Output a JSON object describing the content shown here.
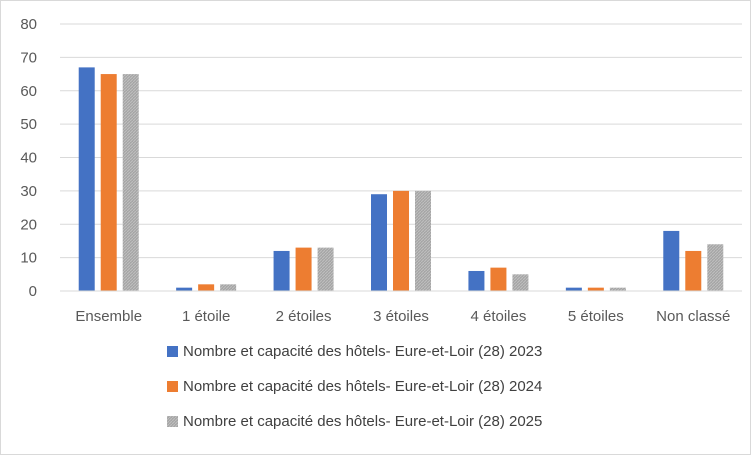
{
  "chart_data": {
    "type": "bar",
    "categories": [
      "Ensemble",
      "1 étoile",
      "2 étoiles",
      "3 étoiles",
      "4 étoiles",
      "5 étoiles",
      "Non classé"
    ],
    "series": [
      {
        "name": "Nombre et capacité des hôtels- Eure-et-Loir (28) 2023",
        "color": "#4472c4",
        "values": [
          67,
          1,
          12,
          29,
          6,
          1,
          18
        ]
      },
      {
        "name": "Nombre et capacité des hôtels- Eure-et-Loir (28) 2024",
        "color": "#ed7d31",
        "values": [
          65,
          2,
          13,
          30,
          7,
          1,
          12
        ]
      },
      {
        "name": "Nombre et capacité des hôtels- Eure-et-Loir (28) 2025",
        "color": "#a5a5a5",
        "values": [
          65,
          2,
          13,
          30,
          5,
          1,
          14
        ]
      }
    ],
    "ylim": [
      0,
      80
    ],
    "yticks": [
      0,
      10,
      20,
      30,
      40,
      50,
      60,
      70,
      80
    ],
    "grid": true,
    "legend_position": "bottom",
    "title": "",
    "xlabel": "",
    "ylabel": ""
  }
}
